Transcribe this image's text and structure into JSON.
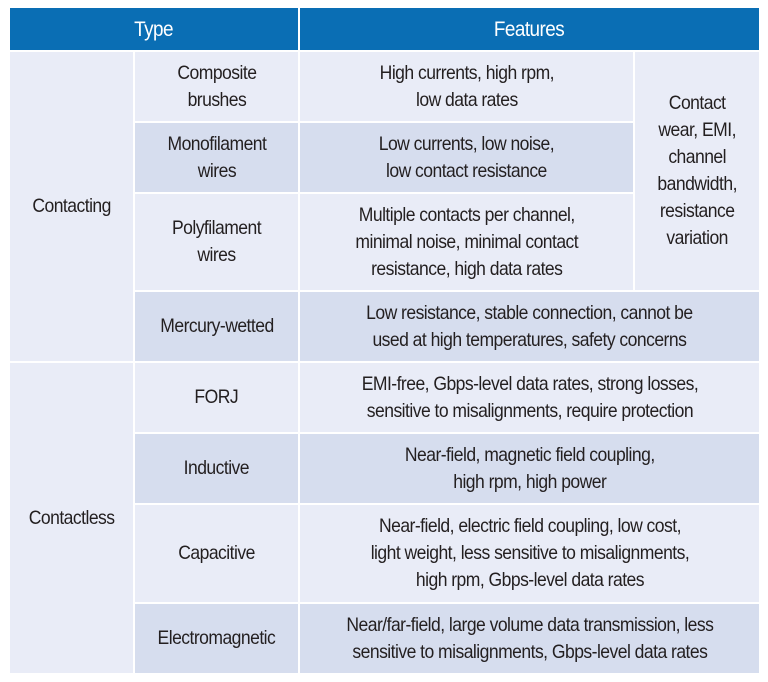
{
  "table": {
    "headers": [
      "Type",
      "Features"
    ],
    "colors": {
      "header_bg": "#0a6eb4",
      "header_text": "#ffffff",
      "row_light": "#e9ecf7",
      "row_dark": "#d6ddee"
    },
    "groups": [
      {
        "name": "Contacting",
        "shared_feature": "Contact\nwear, EMI,\nchannel\nbandwidth,\nresistance\nvariation",
        "rows": [
          {
            "type": "Composite\nbrushes",
            "features": "High currents, high rpm,\nlow data rates"
          },
          {
            "type": "Monofilament\nwires",
            "features": "Low currents, low noise,\nlow contact resistance"
          },
          {
            "type": "Polyfilament\nwires",
            "features": "Multiple contacts per channel,\nminimal noise, minimal contact\nresistance, high data rates"
          },
          {
            "type": "Mercury-wetted",
            "features": "Low resistance, stable connection, cannot be\nused at high temperatures, safety concerns"
          }
        ]
      },
      {
        "name": "Contactless",
        "rows": [
          {
            "type": "FORJ",
            "features": "EMI-free, Gbps-level data rates, strong losses,\nsensitive to misalignments, require protection"
          },
          {
            "type": "Inductive",
            "features": "Near-field, magnetic field coupling,\nhigh rpm, high power"
          },
          {
            "type": "Capacitive",
            "features": "Near-field, electric field coupling, low cost,\nlight weight, less sensitive to misalignments,\nhigh rpm, Gbps-level data rates"
          },
          {
            "type": "Electromagnetic",
            "features": "Near/far-field, large volume data transmission, less\nsensitive to misalignments, Gbps-level data rates"
          }
        ]
      }
    ]
  }
}
